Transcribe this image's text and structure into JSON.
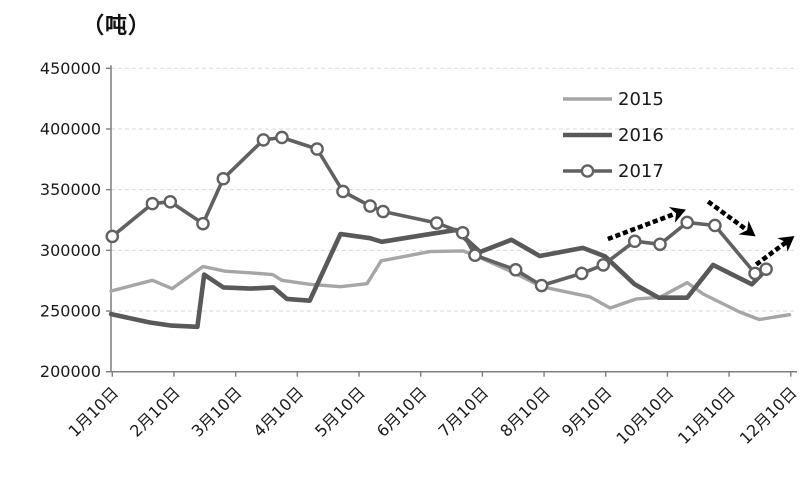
{
  "title": "（吨）",
  "chart_data": {
    "type": "line",
    "title": "（吨）",
    "unit_label": "（吨）",
    "ylim": [
      200000,
      450000
    ],
    "ytick_interval": 50000,
    "y_tick_labels": [
      "450000",
      "400000",
      "350000",
      "300000",
      "250000",
      "200000"
    ],
    "x_tick_labels": [
      "1月10日",
      "2月10日",
      "3月10日",
      "4月10日",
      "5月10日",
      "6月10日",
      "7月10日",
      "8月10日",
      "9月10日",
      "10月10日",
      "11月10日",
      "12月10日"
    ],
    "x_unit": "months_after_jan10",
    "grid": "dashed-horizontal",
    "legend_position": "upper-right-inside",
    "colors": {
      "series_2015": "#a6a6a6",
      "series_2016": "#595959",
      "series_2017": "#616161",
      "marker_fill": "#ffffff",
      "axis": "#7f7f7f",
      "gridline": "#d9d9d9",
      "text": "#1a1a1a",
      "arrow": "#000000"
    },
    "series": [
      {
        "name": "2015",
        "color": "#a6a6a6",
        "line_width": 3.4,
        "marker": "none",
        "points": [
          [
            -0.02,
            266500
          ],
          [
            0.65,
            275300
          ],
          [
            0.97,
            268500
          ],
          [
            1.47,
            286700
          ],
          [
            1.83,
            282800
          ],
          [
            2.23,
            281500
          ],
          [
            2.6,
            280000
          ],
          [
            2.75,
            275300
          ],
          [
            3.2,
            272000
          ],
          [
            3.7,
            270000
          ],
          [
            4.13,
            272500
          ],
          [
            4.36,
            291400
          ],
          [
            5.15,
            299000
          ],
          [
            5.69,
            299500
          ],
          [
            5.96,
            294000
          ],
          [
            6.5,
            281800
          ],
          [
            6.96,
            270000
          ],
          [
            7.74,
            261700
          ],
          [
            8.07,
            252500
          ],
          [
            8.5,
            260000
          ],
          [
            8.88,
            261300
          ],
          [
            9.32,
            273400
          ],
          [
            9.58,
            264000
          ],
          [
            10.17,
            249200
          ],
          [
            10.49,
            243000
          ],
          [
            10.98,
            247000
          ]
        ]
      },
      {
        "name": "2016",
        "color": "#595959",
        "line_width": 4.6,
        "marker": "none",
        "points": [
          [
            -0.02,
            247500
          ],
          [
            0.61,
            240500
          ],
          [
            0.96,
            238000
          ],
          [
            1.38,
            237000
          ],
          [
            1.49,
            280000
          ],
          [
            1.8,
            269500
          ],
          [
            2.24,
            268500
          ],
          [
            2.61,
            269500
          ],
          [
            2.83,
            260000
          ],
          [
            3.2,
            258500
          ],
          [
            3.7,
            313500
          ],
          [
            4.18,
            310000
          ],
          [
            4.37,
            307000
          ],
          [
            5.07,
            312800
          ],
          [
            5.57,
            316800
          ],
          [
            5.96,
            298600
          ],
          [
            6.47,
            308700
          ],
          [
            6.93,
            295300
          ],
          [
            7.63,
            302000
          ],
          [
            7.99,
            295000
          ],
          [
            8.47,
            272000
          ],
          [
            8.86,
            261000
          ],
          [
            9.32,
            261000
          ],
          [
            9.74,
            288000
          ],
          [
            10.37,
            272000
          ],
          [
            10.6,
            284000
          ]
        ]
      },
      {
        "name": "2017",
        "color": "#616161",
        "line_width": 3.6,
        "marker": "circle",
        "points": [
          [
            0.0,
            311500
          ],
          [
            0.65,
            338500
          ],
          [
            0.94,
            340000
          ],
          [
            1.47,
            322000
          ],
          [
            1.8,
            359000
          ],
          [
            2.45,
            391000
          ],
          [
            2.75,
            393000
          ],
          [
            3.32,
            383500
          ],
          [
            3.74,
            348500
          ],
          [
            4.18,
            336500
          ],
          [
            4.39,
            332000
          ],
          [
            5.26,
            322500
          ],
          [
            5.68,
            314500
          ],
          [
            5.88,
            296000
          ],
          [
            6.54,
            284000
          ],
          [
            6.96,
            271000
          ],
          [
            7.61,
            281000
          ],
          [
            7.96,
            288000
          ],
          [
            8.47,
            307500
          ],
          [
            8.88,
            305000
          ],
          [
            9.32,
            323000
          ],
          [
            9.77,
            320500
          ],
          [
            10.42,
            281000
          ],
          [
            10.6,
            284500
          ]
        ]
      }
    ],
    "annotations": {
      "trend_arrows": [
        {
          "from": [
            8.07,
            310000
          ],
          "to": [
            9.3,
            333500
          ]
        },
        {
          "from": [
            9.69,
            339000
          ],
          "to": [
            10.43,
            311500
          ]
        },
        {
          "from": [
            10.47,
            289500
          ],
          "to": [
            11.06,
            311800
          ]
        }
      ]
    },
    "legend": [
      {
        "label": "2015"
      },
      {
        "label": "2016"
      },
      {
        "label": "2017"
      }
    ]
  }
}
